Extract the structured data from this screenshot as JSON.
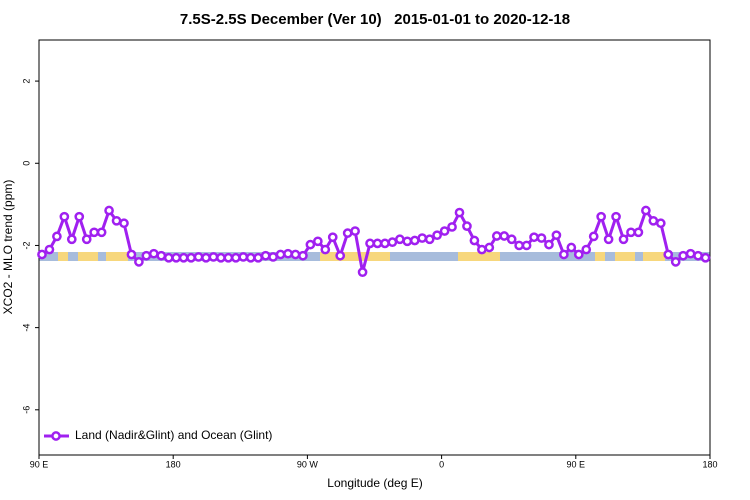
{
  "chart_data": {
    "type": "line",
    "title": "7.5S-2.5S December (Ver 10)   2015-01-01 to 2020-12-18",
    "x_label": "Longitude (deg E)",
    "y_label": "XCO2 - MLO trend (ppm)",
    "xlim": [
      90,
      540
    ],
    "ylim": [
      -7.1,
      3.0
    ],
    "xticks": [
      {
        "value": 90,
        "label": "90 E"
      },
      180,
      {
        "value": 270,
        "label": "90 W"
      },
      {
        "value": 360,
        "label": "0"
      },
      {
        "value": 450,
        "label": "90 E"
      },
      {
        "value": 540,
        "label": "180"
      }
    ],
    "yticks": [
      2,
      0,
      -2,
      -4,
      -6
    ],
    "legend": "bottom-left",
    "x": [
      92,
      97,
      102,
      107,
      112,
      117,
      122,
      127,
      132,
      137,
      142,
      147,
      152,
      157,
      162,
      167,
      172,
      177,
      182,
      187,
      192,
      197,
      202,
      207,
      212,
      217,
      222,
      227,
      232,
      237,
      242,
      247,
      252,
      257,
      262,
      267,
      272,
      277,
      282,
      287,
      292,
      297,
      302,
      307,
      312,
      317,
      322,
      327,
      332,
      337,
      342,
      347,
      352,
      357,
      362,
      367,
      372,
      377,
      382,
      387,
      392,
      397,
      402,
      407,
      412,
      417,
      422,
      427,
      432,
      437,
      442,
      447,
      452,
      457,
      462,
      467,
      472,
      477,
      482,
      487,
      492,
      497,
      502,
      507,
      512,
      517,
      522,
      527,
      532,
      537
    ],
    "series": [
      {
        "name": "Land (Nadir&Glint) and Ocean (Glint)",
        "color": "#a020f0",
        "values": [
          -2.22,
          -2.1,
          -1.78,
          -1.3,
          -1.85,
          -1.3,
          -1.85,
          -1.68,
          -1.68,
          -1.15,
          -1.4,
          -1.46,
          -2.22,
          -2.4,
          -2.25,
          -2.2,
          -2.25,
          -2.3,
          -2.3,
          -2.3,
          -2.3,
          -2.28,
          -2.3,
          -2.28,
          -2.3,
          -2.3,
          -2.3,
          -2.28,
          -2.3,
          -2.3,
          -2.25,
          -2.28,
          -2.22,
          -2.2,
          -2.22,
          -2.25,
          -1.98,
          -1.9,
          -2.1,
          -1.8,
          -2.25,
          -1.7,
          -1.65,
          -2.65,
          -1.95,
          -1.95,
          -1.95,
          -1.92,
          -1.85,
          -1.9,
          -1.88,
          -1.82,
          -1.85,
          -1.75,
          -1.65,
          -1.55,
          -1.2,
          -1.53,
          -1.88,
          -2.1,
          -2.05,
          -1.77,
          -1.77,
          -1.85,
          -2.0,
          -2.0,
          -1.8,
          -1.82,
          -1.98,
          -1.75,
          -2.22,
          -2.05,
          -2.22,
          -2.1,
          -1.78,
          -1.3,
          -1.85,
          -1.3,
          -1.85,
          -1.68,
          -1.68,
          -1.15,
          -1.4,
          -1.46,
          -2.22,
          -2.4,
          -2.25,
          -2.2,
          -2.25,
          -2.3
        ]
      }
    ]
  }
}
